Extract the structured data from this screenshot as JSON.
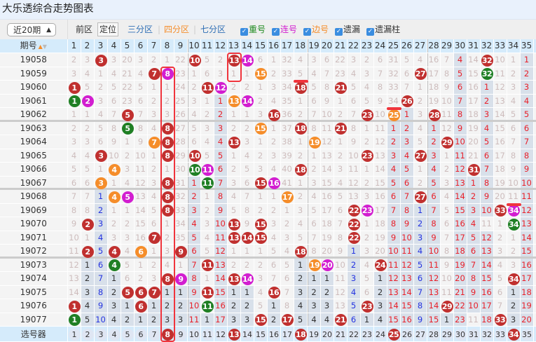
{
  "title": "大乐透综合走势图表",
  "toolbar": {
    "period_select": "近20期",
    "front_label": "前区",
    "position_btn": "定位",
    "zone3": "三分区",
    "zone4": "四分区",
    "zone7": "七分区",
    "sep": "|",
    "checks": [
      {
        "label": "重号",
        "color": "#1f8a1f",
        "checked": true
      },
      {
        "label": "连号",
        "color": "#d21ed0",
        "checked": true
      },
      {
        "label": "边号",
        "color": "#f58d2a",
        "checked": true
      },
      {
        "label": "遗漏",
        "color": "#333333",
        "checked": true
      },
      {
        "label": "遗漏柱",
        "color": "#333333",
        "checked": true
      }
    ]
  },
  "header": {
    "period_label": "期号",
    "sort_icon": "sort-up-down-icon",
    "columns": [
      "1",
      "2",
      "3",
      "4",
      "5",
      "6",
      "7",
      "8",
      "9",
      "10",
      "11",
      "12",
      "13",
      "14",
      "15",
      "16",
      "17",
      "18",
      "19",
      "20",
      "21",
      "22",
      "23",
      "24",
      "25",
      "26",
      "27",
      "28",
      "29",
      "30",
      "31",
      "32",
      "33",
      "34",
      "35"
    ]
  },
  "legend_codes": {
    "r": "red ball (drawn)",
    "g": "green ball (repeat)",
    "p": "magenta ball (consecutive)",
    "o": "orange ball (edge)",
    "s": "miss column red",
    "b": "miss column blue",
    "k": "miss column dark"
  },
  "rows": [
    {
      "period": "19058",
      "cells": [
        "2",
        "3",
        "r3",
        "3",
        "20",
        "3",
        "2",
        "1",
        "22",
        "r10",
        "5",
        "2",
        "r13",
        "p14",
        "6",
        "1",
        "32",
        "4",
        "3",
        "6",
        "22",
        "3",
        "2",
        "6",
        "31",
        "5",
        "4",
        "16",
        "7",
        "s4",
        "14",
        "r32",
        "10",
        "1",
        "s1"
      ]
    },
    {
      "period": "19059",
      "cells": [
        "3",
        "4",
        "1",
        "4",
        "21",
        "4",
        "r7",
        "p8",
        "23",
        "1",
        "6",
        "3",
        "1",
        "1",
        "o15",
        "2",
        "33",
        "5",
        "4",
        "7",
        "23",
        "4",
        "3",
        "7",
        "32",
        "6",
        "r27",
        "17",
        "8",
        "s5",
        "15",
        "g32",
        "11",
        "2",
        "s2"
      ]
    },
    {
      "period": "19060",
      "cells": [
        "r1",
        "5",
        "2",
        "5",
        "22",
        "5",
        "1",
        "1",
        "24",
        "2",
        "r11",
        "p12",
        "2",
        "2",
        "1",
        "3",
        "34",
        "r18",
        "5",
        "8",
        "r21",
        "5",
        "4",
        "8",
        "33",
        "7",
        "1",
        "18",
        "9",
        "s6",
        "16",
        "s1",
        "12",
        "3",
        "s3"
      ]
    },
    {
      "period": "19061",
      "cells": [
        "g1",
        "p2",
        "3",
        "6",
        "23",
        "6",
        "2",
        "2",
        "25",
        "3",
        "1",
        "s1",
        "o13",
        "p14",
        "2",
        "4",
        "35",
        "1",
        "6",
        "9",
        "1",
        "6",
        "5",
        "9",
        "34",
        "r26",
        "2",
        "19",
        "10",
        "s7",
        "17",
        "s2",
        "13",
        "4",
        "s4"
      ]
    },
    {
      "period": "19062",
      "cells": [
        "1",
        "1",
        "4",
        "7",
        "r5",
        "7",
        "3",
        "3",
        "26",
        "4",
        "2",
        "s2",
        "1",
        "1",
        "3",
        "r16",
        "36",
        "2",
        "7",
        "10",
        "2",
        "7",
        "r23",
        "10",
        "o25",
        "s1",
        "3",
        "r28",
        "11",
        "s8",
        "18",
        "s3",
        "14",
        "5",
        "s5"
      ]
    },
    {
      "period": "19063",
      "cells": [
        "2",
        "2",
        "5",
        "8",
        "g5",
        "8",
        "4",
        "r8",
        "27",
        "5",
        "3",
        "s3",
        "2",
        "2",
        "o15",
        "1",
        "37",
        "r18",
        "8",
        "11",
        "r21",
        "8",
        "1",
        "11",
        "s1",
        "s2",
        "4",
        "s1",
        "12",
        "s9",
        "19",
        "s4",
        "15",
        "6",
        "s6"
      ]
    },
    {
      "period": "19064",
      "cells": [
        "3",
        "3",
        "6",
        "9",
        "1",
        "9",
        "o7",
        "r8",
        "28",
        "6",
        "4",
        "s4",
        "r13",
        "3",
        "1",
        "2",
        "38",
        "1",
        "o19",
        "12",
        "1",
        "9",
        "2",
        "12",
        "s2",
        "s3",
        "5",
        "s2",
        "r29",
        "s10",
        "20",
        "s5",
        "16",
        "7",
        "s7"
      ]
    },
    {
      "period": "19065",
      "cells": [
        "4",
        "4",
        "r3",
        "10",
        "2",
        "10",
        "1",
        "r8",
        "29",
        "r10",
        "5",
        "s5",
        "1",
        "4",
        "2",
        "3",
        "39",
        "2",
        "1",
        "13",
        "2",
        "10",
        "r23",
        "13",
        "s3",
        "s4",
        "r27",
        "s3",
        "1",
        "s11",
        "21",
        "s6",
        "17",
        "8",
        "s8"
      ]
    },
    {
      "period": "19066",
      "cells": [
        "5",
        "5",
        "1",
        "o4",
        "3",
        "11",
        "2",
        "1",
        "30",
        "g10",
        "p11",
        "s6",
        "2",
        "5",
        "3",
        "4",
        "40",
        "r18",
        "2",
        "14",
        "3",
        "11",
        "1",
        "14",
        "s4",
        "s5",
        "1",
        "s4",
        "2",
        "s12",
        "r31",
        "s7",
        "18",
        "9",
        "s9"
      ]
    },
    {
      "period": "19067",
      "cells": [
        "6",
        "6",
        "o3",
        "1",
        "4",
        "12",
        "3",
        "r8",
        "31",
        "s1",
        "g11",
        "s7",
        "3",
        "6",
        "r15",
        "p16",
        "41",
        "1",
        "3",
        "15",
        "4",
        "12",
        "2",
        "15",
        "s5",
        "s6",
        "2",
        "s5",
        "3",
        "s13",
        "s1",
        "s8",
        "19",
        "10",
        "s10"
      ]
    },
    {
      "period": "19068",
      "cells": [
        "7",
        "7",
        "b1",
        "o4",
        "p5",
        "13",
        "4",
        "r8",
        "32",
        "s2",
        "1",
        "s8",
        "4",
        "7",
        "1",
        "1",
        "o17",
        "2",
        "4",
        "16",
        "5",
        "13",
        "3",
        "16",
        "s6",
        "s7",
        "r27",
        "s6",
        "4",
        "s14",
        "s2",
        "s9",
        "20",
        "11",
        "s11"
      ]
    },
    {
      "period": "19069",
      "cells": [
        "8",
        "8",
        "b2",
        "1",
        "1",
        "14",
        "5",
        "r8",
        "33",
        "s3",
        "2",
        "s9",
        "5",
        "8",
        "2",
        "2",
        "1",
        "3",
        "5",
        "17",
        "6",
        "r22",
        "p23",
        "17",
        "s7",
        "s8",
        "b1",
        "s7",
        "5",
        "s15",
        "s3",
        "s10",
        "r33",
        "p34",
        "s12"
      ]
    },
    {
      "period": "19070",
      "cells": [
        "9",
        "r2",
        "b3",
        "2",
        "2",
        "15",
        "6",
        "1",
        "34",
        "s4",
        "3",
        "s10",
        "r13",
        "9",
        "r15",
        "3",
        "2",
        "4",
        "6",
        "18",
        "7",
        "r22",
        "1",
        "18",
        "s8",
        "s9",
        "b2",
        "s8",
        "6",
        "s16",
        "s4",
        "11",
        "1",
        "g34",
        "s13"
      ]
    },
    {
      "period": "19071",
      "cells": [
        "10",
        "1",
        "b4",
        "3",
        "3",
        "16",
        "r7",
        "2",
        "35",
        "s5",
        "4",
        "s11",
        "r13",
        "r14",
        "r15",
        "4",
        "3",
        "5",
        "7",
        "19",
        "8",
        "r22",
        "2",
        "19",
        "s9",
        "s10",
        "b3",
        "s9",
        "7",
        "s17",
        "s5",
        "s12",
        "2",
        "1",
        "s14"
      ]
    },
    {
      "period": "19072",
      "cells": [
        "11",
        "r2",
        "b5",
        "r4",
        "4",
        "o6",
        "1",
        "3",
        "r9",
        "s6",
        "5",
        "s12",
        "1",
        "1",
        "1",
        "5",
        "4",
        "r18",
        "8",
        "20",
        "9",
        "b1",
        "3",
        "20",
        "s10",
        "s11",
        "b4",
        "s10",
        "8",
        "s18",
        "s6",
        "s13",
        "3",
        "2",
        "s15"
      ]
    },
    {
      "period": "19073",
      "cells": [
        "12",
        "k1",
        "b6",
        "g4",
        "5",
        "1",
        "2",
        "4",
        "1",
        "s7",
        "r11",
        "s13",
        "2",
        "2",
        "2",
        "6",
        "5",
        "k1",
        "o19",
        "p20",
        "10",
        "b2",
        "4",
        "r24",
        "s11",
        "s12",
        "b5",
        "s11",
        "9",
        "s19",
        "s7",
        "s14",
        "4",
        "3",
        "s16"
      ]
    },
    {
      "period": "19074",
      "cells": [
        "13",
        "k2",
        "b7",
        "k1",
        "6",
        "2",
        "3",
        "r8",
        "p9",
        "s8",
        "1",
        "s14",
        "r13",
        "p14",
        "3",
        "7",
        "6",
        "k2",
        "k1",
        "k1",
        "11",
        "b3",
        "5",
        "k1",
        "s12",
        "s13",
        "b6",
        "s12",
        "10",
        "s20",
        "s8",
        "s15",
        "5",
        "r34",
        "s17"
      ]
    },
    {
      "period": "19075",
      "cells": [
        "14",
        "k3",
        "b8",
        "k2",
        "r5",
        "r6",
        "r7",
        "k1",
        "k1",
        "s9",
        "r11",
        "s15",
        "k1",
        "k1",
        "4",
        "r16",
        "7",
        "k3",
        "k2",
        "k2",
        "12",
        "b4",
        "6",
        "k2",
        "s13",
        "s14",
        "b7",
        "s13",
        "11",
        "s21",
        "s9",
        "s16",
        "6",
        "k1",
        "s18"
      ]
    },
    {
      "period": "19076",
      "cells": [
        "r1",
        "k4",
        "b9",
        "k3",
        "k1",
        "r6",
        "k1",
        "k2",
        "k2",
        "s10",
        "g11",
        "s16",
        "k2",
        "k2",
        "5",
        "k1",
        "8",
        "k4",
        "k3",
        "k3",
        "13",
        "b5",
        "r23",
        "k3",
        "s14",
        "s15",
        "b8",
        "s14",
        "r29",
        "s22",
        "s10",
        "s17",
        "7",
        "k2",
        "s19"
      ]
    },
    {
      "period": "19077",
      "cells": [
        "g1",
        "k5",
        "b10",
        "k4",
        "k2",
        "k1",
        "k2",
        "k3",
        "k3",
        "s11",
        "k1",
        "s17",
        "k3",
        "k3",
        "r15",
        "k2",
        "r17",
        "k5",
        "k4",
        "k4",
        "r21",
        "b6",
        "k1",
        "k4",
        "s15",
        "s16",
        "b9",
        "s15",
        "k1",
        "s23",
        "11",
        "s18",
        "r33",
        "k3",
        "s20"
      ]
    }
  ],
  "selector": {
    "label": "选号器",
    "selected": [
      8,
      13,
      18,
      25,
      34
    ]
  },
  "highlight_columns": [
    {
      "col": 8,
      "from": "19059"
    },
    {
      "col": 13,
      "from": "19058"
    },
    {
      "col": 18,
      "from": "19060"
    },
    {
      "col": 25,
      "from": "19062"
    },
    {
      "col": 34,
      "from": "19069"
    }
  ],
  "colors": {
    "accent_red": "#c0302f",
    "box": "#f0343c",
    "header_bg": "#d5ebfb"
  }
}
